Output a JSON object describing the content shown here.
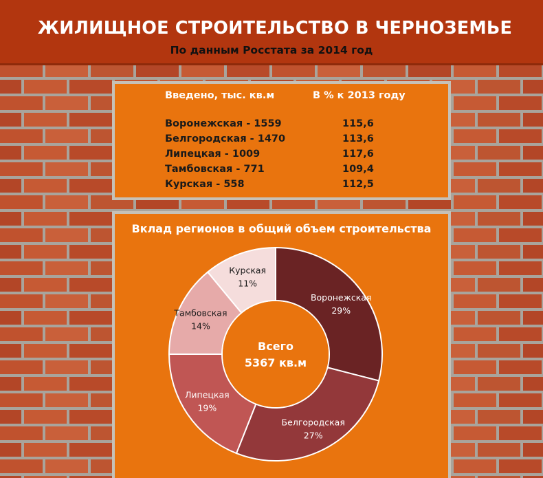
{
  "header": {
    "title": "ЖИЛИЩНОЕ СТРОИТЕЛЬСТВО В ЧЕРНОЗЕМЬЕ",
    "subtitle": "По данным Росстата за 2014 год"
  },
  "table": {
    "col_name": "Введено, тыс. кв.м",
    "col_pct": "В % к 2013 году",
    "rows": [
      {
        "name": "Воронежская - 1559",
        "pct": "115,6"
      },
      {
        "name": "Белгородская - 1470",
        "pct": "113,6"
      },
      {
        "name": "Липецкая - 1009",
        "pct": "117,6"
      },
      {
        "name": "Тамбовская - 771",
        "pct": "109,4"
      },
      {
        "name": "Курская - 558",
        "pct": "112,5"
      }
    ]
  },
  "colors": {
    "header_bg": "#b2360f",
    "panel_bg": "#e9740e",
    "brick": "#c0522e",
    "mortar": "#a9a49c"
  },
  "chart_data": {
    "type": "pie",
    "title": "Вклад регионов в общий объем строительства",
    "center_label": [
      "Всего",
      "5367 кв.м"
    ],
    "slices": [
      {
        "name": "Воронежская",
        "value": 29,
        "label": "29%",
        "color": "#6a2324"
      },
      {
        "name": "Белгородская",
        "value": 27,
        "label": "27%",
        "color": "#93383a"
      },
      {
        "name": "Липецкая",
        "value": 19,
        "label": "19%",
        "color": "#c05654"
      },
      {
        "name": "Тамбовская",
        "value": 14,
        "label": "14%",
        "color": "#e6aaa9"
      },
      {
        "name": "Курская",
        "value": 11,
        "label": "11%",
        "color": "#f5dddc"
      }
    ]
  }
}
